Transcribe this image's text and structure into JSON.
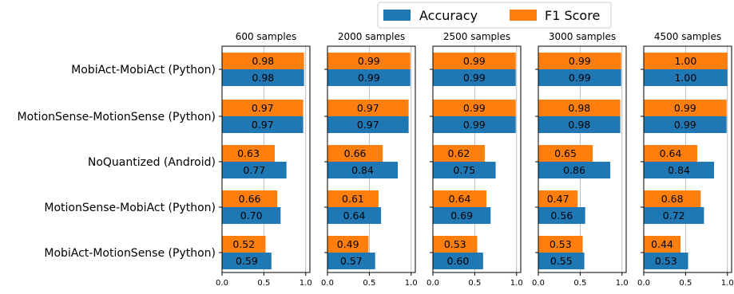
{
  "chart_data": {
    "type": "bar",
    "orientation": "horizontal",
    "xlim": [
      0,
      1.05
    ],
    "xticks": [
      "0.0",
      "0.5",
      "1.0"
    ],
    "grid": "vertical",
    "legend_position": "top-right",
    "legend": [
      "Accuracy",
      "F1 Score"
    ],
    "categories": [
      "MobiAct-MobiAct (Python)",
      "MotionSense-MotionSense (Python)",
      "NoQuantized (Android)",
      "MotionSense-MobiAct (Python)",
      "MobiAct-MotionSense (Python)"
    ],
    "colors": {
      "Accuracy": "#1f77b4",
      "F1 Score": "#ff7f0e"
    },
    "panels": [
      {
        "title": "600 samples",
        "series": [
          {
            "name": "Accuracy",
            "values": [
              0.98,
              0.97,
              0.77,
              0.7,
              0.59
            ],
            "labels": [
              "0.98",
              "0.97",
              "0.77",
              "0.70",
              "0.59"
            ]
          },
          {
            "name": "F1 Score",
            "values": [
              0.98,
              0.97,
              0.63,
              0.66,
              0.52
            ],
            "labels": [
              "0.98",
              "0.97",
              "0.63",
              "0.66",
              "0.52"
            ]
          }
        ]
      },
      {
        "title": "2000 samples",
        "series": [
          {
            "name": "Accuracy",
            "values": [
              0.99,
              0.97,
              0.84,
              0.64,
              0.57
            ],
            "labels": [
              "0.99",
              "0.97",
              "0.84",
              "0.64",
              "0.57"
            ]
          },
          {
            "name": "F1 Score",
            "values": [
              0.99,
              0.97,
              0.66,
              0.61,
              0.49
            ],
            "labels": [
              "0.99",
              "0.97",
              "0.66",
              "0.61",
              "0.49"
            ]
          }
        ]
      },
      {
        "title": "2500 samples",
        "series": [
          {
            "name": "Accuracy",
            "values": [
              0.99,
              0.99,
              0.75,
              0.69,
              0.6
            ],
            "labels": [
              "0.99",
              "0.99",
              "0.75",
              "0.69",
              "0.60"
            ]
          },
          {
            "name": "F1 Score",
            "values": [
              0.99,
              0.99,
              0.62,
              0.64,
              0.53
            ],
            "labels": [
              "0.99",
              "0.99",
              "0.62",
              "0.64",
              "0.53"
            ]
          }
        ]
      },
      {
        "title": "3000 samples",
        "series": [
          {
            "name": "Accuracy",
            "values": [
              0.99,
              0.98,
              0.86,
              0.56,
              0.55
            ],
            "labels": [
              "0.99",
              "0.98",
              "0.86",
              "0.56",
              "0.55"
            ]
          },
          {
            "name": "F1 Score",
            "values": [
              0.99,
              0.98,
              0.65,
              0.47,
              0.53
            ],
            "labels": [
              "0.99",
              "0.98",
              "0.65",
              "0.47",
              "0.53"
            ]
          }
        ]
      },
      {
        "title": "4500 samples",
        "series": [
          {
            "name": "Accuracy",
            "values": [
              1.0,
              0.99,
              0.84,
              0.72,
              0.53
            ],
            "labels": [
              "1.00",
              "0.99",
              "0.84",
              "0.72",
              "0.53"
            ]
          },
          {
            "name": "F1 Score",
            "values": [
              1.0,
              0.99,
              0.64,
              0.68,
              0.44
            ],
            "labels": [
              "1.00",
              "0.99",
              "0.64",
              "0.68",
              "0.44"
            ]
          }
        ]
      }
    ]
  }
}
